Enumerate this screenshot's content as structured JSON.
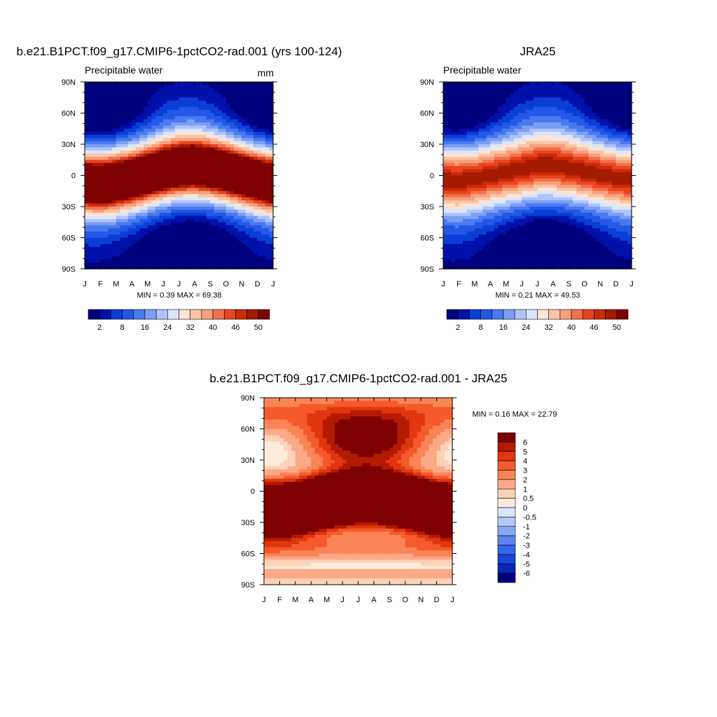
{
  "panels": [
    {
      "id": "model",
      "title": "b.e21.B1PCT.f09_g17.CMIP6-1pctCO2-rad.001 (yrs 100-124)",
      "left_label": "Precipitable water",
      "right_label": "mm",
      "min_text": "MIN =   0.39 MAX =  69.38",
      "x_ticks": [
        "J",
        "F",
        "M",
        "A",
        "M",
        "J",
        "J",
        "A",
        "S",
        "O",
        "N",
        "D",
        "J"
      ],
      "y_ticks": [
        "90N",
        "60N",
        "30N",
        "0",
        "30S",
        "60S",
        "90S"
      ],
      "colorbar_labels": [
        "2",
        "8",
        "16",
        "24",
        "32",
        "40",
        "46",
        "50"
      ]
    },
    {
      "id": "obs",
      "title": "JRA25",
      "left_label": "Precipitable water",
      "right_label": "",
      "min_text": "MIN =   0.21 MAX =  49.53",
      "x_ticks": [
        "J",
        "F",
        "M",
        "A",
        "M",
        "J",
        "J",
        "A",
        "S",
        "O",
        "N",
        "D",
        "J"
      ],
      "y_ticks": [
        "90N",
        "60N",
        "30N",
        "0",
        "30S",
        "60S",
        "90S"
      ],
      "colorbar_labels": [
        "2",
        "8",
        "16",
        "24",
        "32",
        "40",
        "46",
        "50"
      ]
    },
    {
      "id": "diff",
      "title": "b.e21.B1PCT.f09_g17.CMIP6-1pctCO2-rad.001 - JRA25",
      "left_label": "",
      "right_label": "",
      "min_text": "MIN =   0.16 MAX =  22.79",
      "x_ticks": [
        "J",
        "F",
        "M",
        "A",
        "M",
        "J",
        "J",
        "A",
        "S",
        "O",
        "N",
        "D",
        "J"
      ],
      "y_ticks": [
        "90N",
        "60N",
        "30N",
        "0",
        "30S",
        "60S",
        "90S"
      ],
      "colorbar_labels": [
        "6",
        "5",
        "4",
        "3",
        "2",
        "1",
        "0.5",
        "0",
        "-0.5",
        "-1",
        "-2",
        "-3",
        "-4",
        "-5",
        "-6"
      ]
    }
  ],
  "palettes": {
    "abs": [
      "#00007f",
      "#0011aa",
      "#0a3fd6",
      "#2358e6",
      "#4a7af0",
      "#7c9ef5",
      "#aec3fa",
      "#dbe6fd",
      "#fde5d4",
      "#fbc4a6",
      "#f7a07c",
      "#f2724d",
      "#e84523",
      "#cc2a06",
      "#a31a00",
      "#7f0000"
    ],
    "diff": [
      "#7f0000",
      "#b41a00",
      "#e03710",
      "#f55a2c",
      "#fb8456",
      "#fca987",
      "#fdd2b8",
      "#fdeada",
      "#dbe6fd",
      "#b3c9fa",
      "#88a8f5",
      "#5b85ef",
      "#3366e8",
      "#1a45d6",
      "#0a25b8",
      "#00007f"
    ]
  },
  "chart_data": [
    {
      "type": "heatmap",
      "title": "b.e21.B1PCT.f09_g17.CMIP6-1pctCO2-rad.001 (yrs 100-124)",
      "variable": "Precipitable water",
      "units": "mm",
      "x": [
        "J",
        "F",
        "M",
        "A",
        "M",
        "J",
        "J",
        "A",
        "S",
        "O",
        "N",
        "D",
        "J"
      ],
      "y_range": [
        -90,
        90
      ],
      "levels": [
        2,
        5,
        8,
        12,
        16,
        20,
        24,
        28,
        32,
        36,
        40,
        43,
        46,
        48,
        50
      ],
      "min": 0.39,
      "max": 69.38,
      "field": {
        "peak": 69.38,
        "itcz_lat_by_month": [
          -7,
          -8,
          -6,
          -3,
          1,
          5,
          8,
          9,
          7,
          4,
          0,
          -4,
          -7
        ],
        "width_deg": 22,
        "south_min": 0.39
      }
    },
    {
      "type": "heatmap",
      "title": "JRA25",
      "variable": "Precipitable water",
      "x": [
        "J",
        "F",
        "M",
        "A",
        "M",
        "J",
        "J",
        "A",
        "S",
        "O",
        "N",
        "D",
        "J"
      ],
      "y_range": [
        -90,
        90
      ],
      "levels": [
        2,
        5,
        8,
        12,
        16,
        20,
        24,
        28,
        32,
        36,
        40,
        43,
        46,
        48,
        50
      ],
      "min": 0.21,
      "max": 49.53,
      "field": {
        "peak": 49.53,
        "itcz_lat_by_month": [
          -4,
          -5,
          -3,
          0,
          3,
          6,
          9,
          9,
          7,
          4,
          1,
          -2,
          -4
        ],
        "width_deg": 24,
        "south_min": 0.21
      }
    },
    {
      "type": "heatmap",
      "title": "b.e21.B1PCT.f09_g17.CMIP6-1pctCO2-rad.001 - JRA25",
      "x": [
        "J",
        "F",
        "M",
        "A",
        "M",
        "J",
        "J",
        "A",
        "S",
        "O",
        "N",
        "D",
        "J"
      ],
      "y_range": [
        -90,
        90
      ],
      "levels": [
        -6,
        -5,
        -4,
        -3,
        -2,
        -1,
        -0.5,
        0,
        0.5,
        1,
        2,
        3,
        4,
        5,
        6
      ],
      "min": 0.16,
      "max": 22.79
    }
  ]
}
